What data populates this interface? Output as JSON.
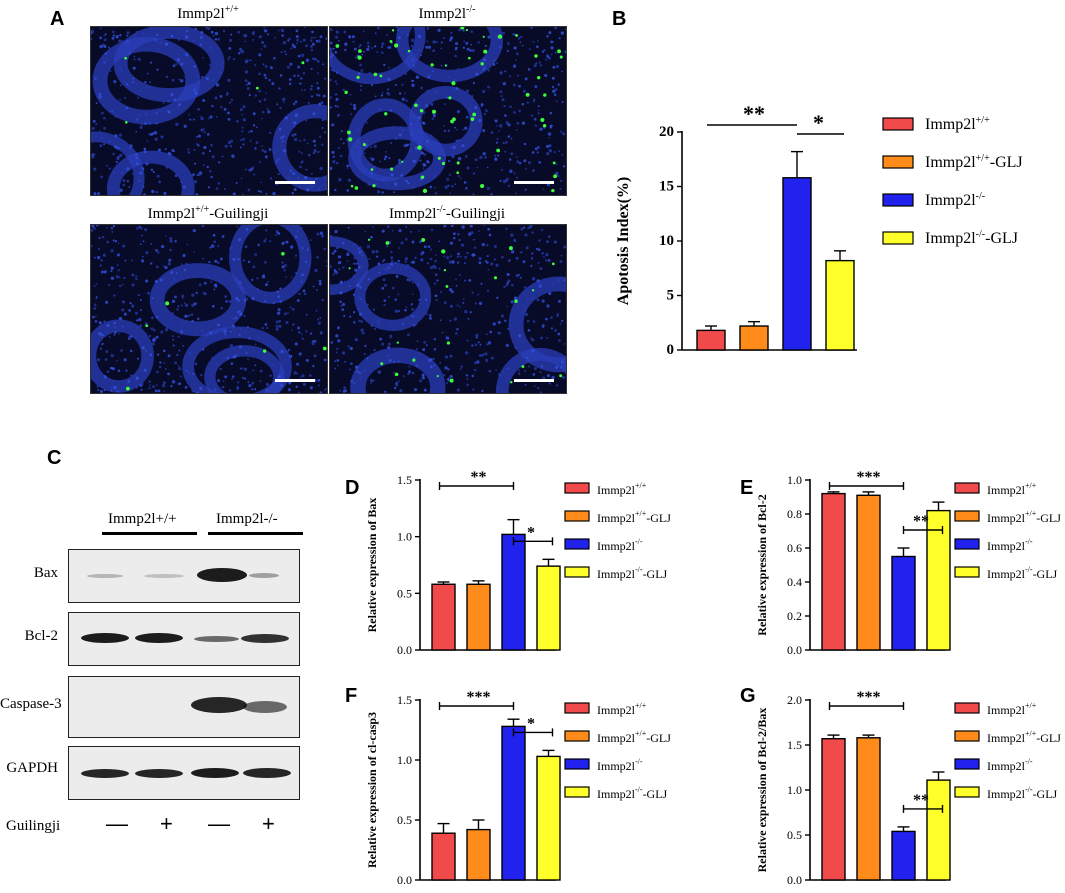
{
  "panel_labels": {
    "a": "A",
    "b": "B",
    "c": "C",
    "d": "D",
    "e": "E",
    "f": "F",
    "g": "G"
  },
  "micrographs": [
    {
      "base": "Immp2l",
      "sup": "+/+",
      "suffix": ""
    },
    {
      "base": "Immp2l",
      "sup": "-/-",
      "suffix": ""
    },
    {
      "base": "Immp2l",
      "sup": "+/+",
      "suffix": "-Guilingji"
    },
    {
      "base": "Immp2l",
      "sup": "-/-",
      "suffix": "-Guilingji"
    }
  ],
  "western": {
    "group1": "Immp2l+/+",
    "group2": "Immp2l-/-",
    "rows": [
      "Bax",
      "Bcl-2",
      "Caspase-3",
      "GAPDH"
    ],
    "treatment_label": "Guilingji",
    "treatment_signs": [
      "—",
      "+",
      "—",
      "+"
    ]
  },
  "legend": [
    {
      "base": "Immp2l",
      "sup": "+/+",
      "suffix": "",
      "color": "#f04a4a"
    },
    {
      "base": "Immp2l",
      "sup": "+/+",
      "suffix": "-GLJ",
      "color": "#ff8c1a"
    },
    {
      "base": "Immp2l",
      "sup": "-/-",
      "suffix": "",
      "color": "#2222ee"
    },
    {
      "base": "Immp2l",
      "sup": "-/-",
      "suffix": "-GLJ",
      "color": "#ffff2a"
    }
  ],
  "chart_data": [
    {
      "id": "B",
      "type": "bar",
      "ylabel": "Apotosis Index(%)",
      "ylim": [
        0,
        20
      ],
      "yticks": [
        0,
        5,
        10,
        15,
        20
      ],
      "tick_labels": [
        "0",
        "5",
        "10",
        "15",
        "20"
      ],
      "values": [
        1.8,
        2.2,
        15.8,
        8.2
      ],
      "errors": [
        0.4,
        0.4,
        2.4,
        0.9
      ],
      "significance": [
        {
          "from": 0,
          "to": 2,
          "label": "**"
        },
        {
          "from": 2,
          "to": 3,
          "label": "*"
        }
      ]
    },
    {
      "id": "D",
      "type": "bar",
      "ylabel": "Relative expression of Bax",
      "ylim": [
        0,
        1.5
      ],
      "yticks": [
        0,
        0.5,
        1.0,
        1.5
      ],
      "tick_labels": [
        "0.0",
        "0.5",
        "1.0",
        "1.5"
      ],
      "values": [
        0.58,
        0.58,
        1.02,
        0.74
      ],
      "errors": [
        0.02,
        0.03,
        0.13,
        0.06
      ],
      "significance": [
        {
          "from": 0,
          "to": 2,
          "label": "**"
        },
        {
          "from": 2,
          "to": 3,
          "label": "*"
        }
      ]
    },
    {
      "id": "E",
      "type": "bar",
      "ylabel": "Relative expression of Bcl-2",
      "ylim": [
        0,
        1.0
      ],
      "yticks": [
        0,
        0.2,
        0.4,
        0.6,
        0.8,
        1.0
      ],
      "tick_labels": [
        "0.0",
        "0.2",
        "0.4",
        "0.6",
        "0.8",
        "1.0"
      ],
      "values": [
        0.92,
        0.91,
        0.55,
        0.82
      ],
      "errors": [
        0.01,
        0.02,
        0.05,
        0.05
      ],
      "significance": [
        {
          "from": 0,
          "to": 2,
          "label": "***"
        },
        {
          "from": 2,
          "to": 3,
          "label": "**"
        }
      ]
    },
    {
      "id": "F",
      "type": "bar",
      "ylabel": "Relative expression of cl-casp3",
      "ylim": [
        0,
        1.5
      ],
      "yticks": [
        0,
        0.5,
        1.0,
        1.5
      ],
      "tick_labels": [
        "0.0",
        "0.5",
        "1.0",
        "1.5"
      ],
      "values": [
        0.39,
        0.42,
        1.28,
        1.03
      ],
      "errors": [
        0.08,
        0.08,
        0.06,
        0.05
      ],
      "significance": [
        {
          "from": 0,
          "to": 2,
          "label": "***"
        },
        {
          "from": 2,
          "to": 3,
          "label": "*"
        }
      ]
    },
    {
      "id": "G",
      "type": "bar",
      "ylabel": "Relative expression of Bcl-2/Bax",
      "ylim": [
        0,
        2.0
      ],
      "yticks": [
        0,
        0.5,
        1.0,
        1.5,
        2.0
      ],
      "tick_labels": [
        "0.0",
        "0.5",
        "1.0",
        "1.5",
        "2.0"
      ],
      "values": [
        1.57,
        1.58,
        0.54,
        1.11
      ],
      "errors": [
        0.04,
        0.03,
        0.05,
        0.09
      ],
      "significance": [
        {
          "from": 0,
          "to": 2,
          "label": "***"
        },
        {
          "from": 2,
          "to": 3,
          "label": "**"
        }
      ]
    }
  ]
}
